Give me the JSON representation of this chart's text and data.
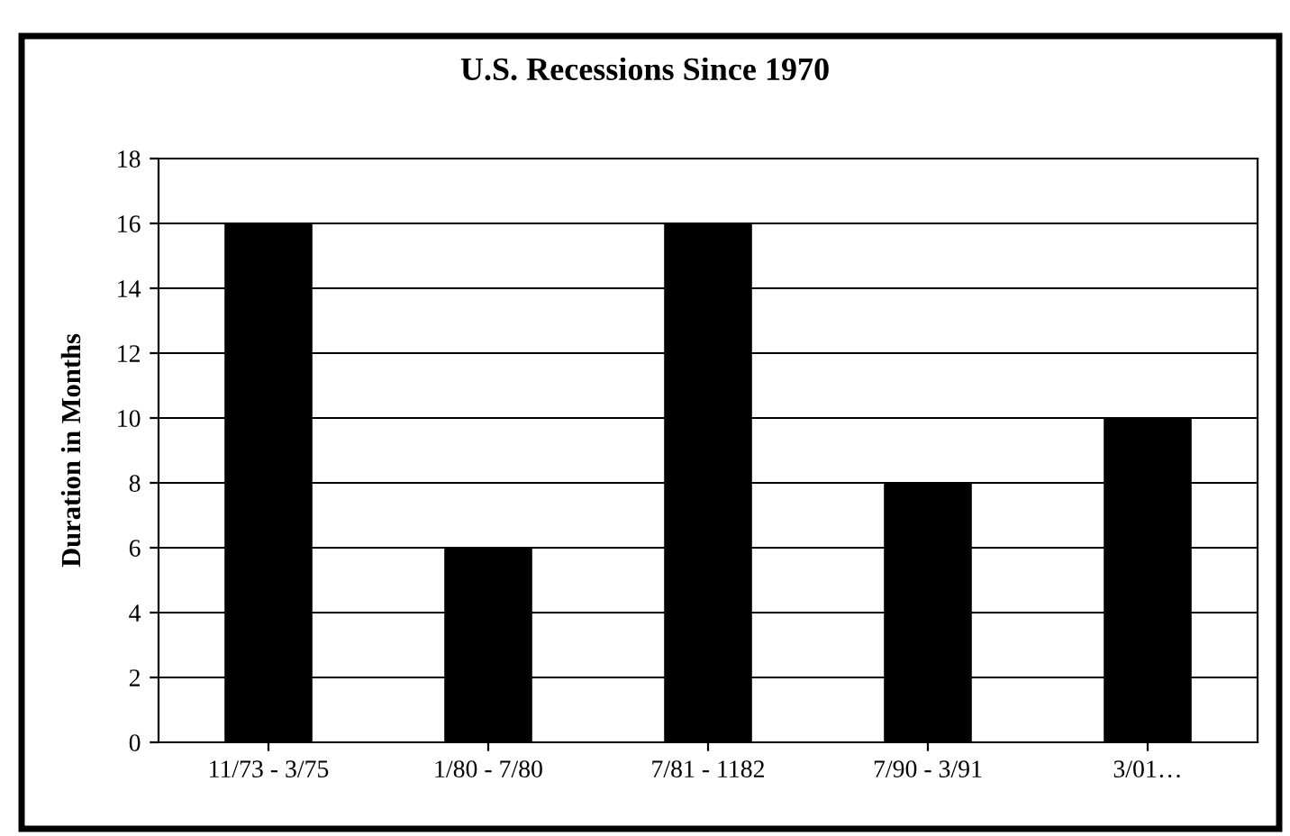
{
  "chart_data": {
    "type": "bar",
    "title": "U.S. Recessions Since 1970",
    "ylabel": "Duration in Months",
    "categories": [
      "11/73 - 3/75",
      "1/80 - 7/80",
      "7/81 - 1182",
      "7/90 - 3/91",
      "3/01…"
    ],
    "values": [
      16,
      6,
      16,
      8,
      10
    ],
    "color": "#000000",
    "ylim": [
      0,
      18
    ],
    "yticks": [
      0,
      2,
      4,
      6,
      8,
      10,
      12,
      14,
      16,
      18
    ],
    "grid": "y",
    "legend": false
  }
}
